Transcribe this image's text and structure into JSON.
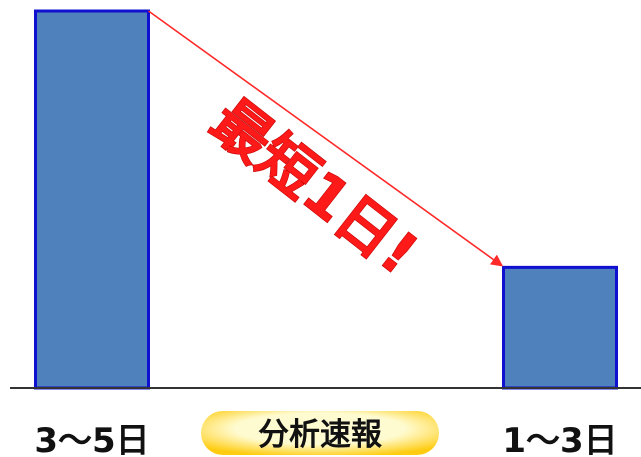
{
  "chart_data": {
    "type": "bar",
    "categories": [
      "3〜5日",
      "1〜3日"
    ],
    "values": [
      5,
      1.6
    ],
    "ylim": [
      0,
      5
    ],
    "grid": false,
    "legend": "none",
    "annotation": "最短1日!",
    "center_label": "分析速報",
    "colors": {
      "bar_fill": "#4f81bd",
      "bar_stroke": "#1010d0",
      "arrow": "#ff2a2a",
      "callout_text": "#ff1a1a",
      "pill_light": "#fffbd0",
      "pill_dark": "#ffcc11",
      "axis": "#333333"
    }
  }
}
